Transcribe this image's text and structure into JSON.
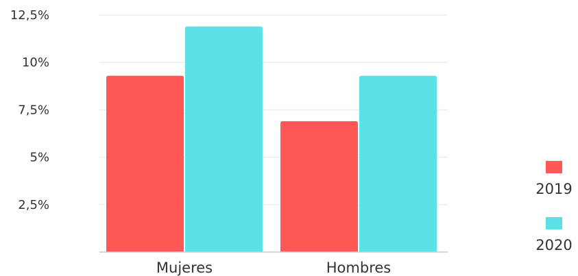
{
  "chart_data": {
    "type": "bar",
    "title": "",
    "xlabel": "",
    "ylabel": "",
    "categories": [
      "Mujeres",
      "Hombres"
    ],
    "series": [
      {
        "name": "2019",
        "color": "#ff5656",
        "values": [
          9.3,
          6.9
        ]
      },
      {
        "name": "2020",
        "color": "#5ce1e6",
        "values": [
          11.9,
          9.3
        ]
      }
    ],
    "ylim": [
      0,
      12.5
    ],
    "yticks": [
      {
        "value": 2.5,
        "label": "2,5%"
      },
      {
        "value": 5,
        "label": "5%"
      },
      {
        "value": 7.5,
        "label": "7,5%"
      },
      {
        "value": 10,
        "label": "10%"
      },
      {
        "value": 12.5,
        "label": "12,5%"
      }
    ],
    "grid": true,
    "legend": {
      "position": "right"
    }
  }
}
